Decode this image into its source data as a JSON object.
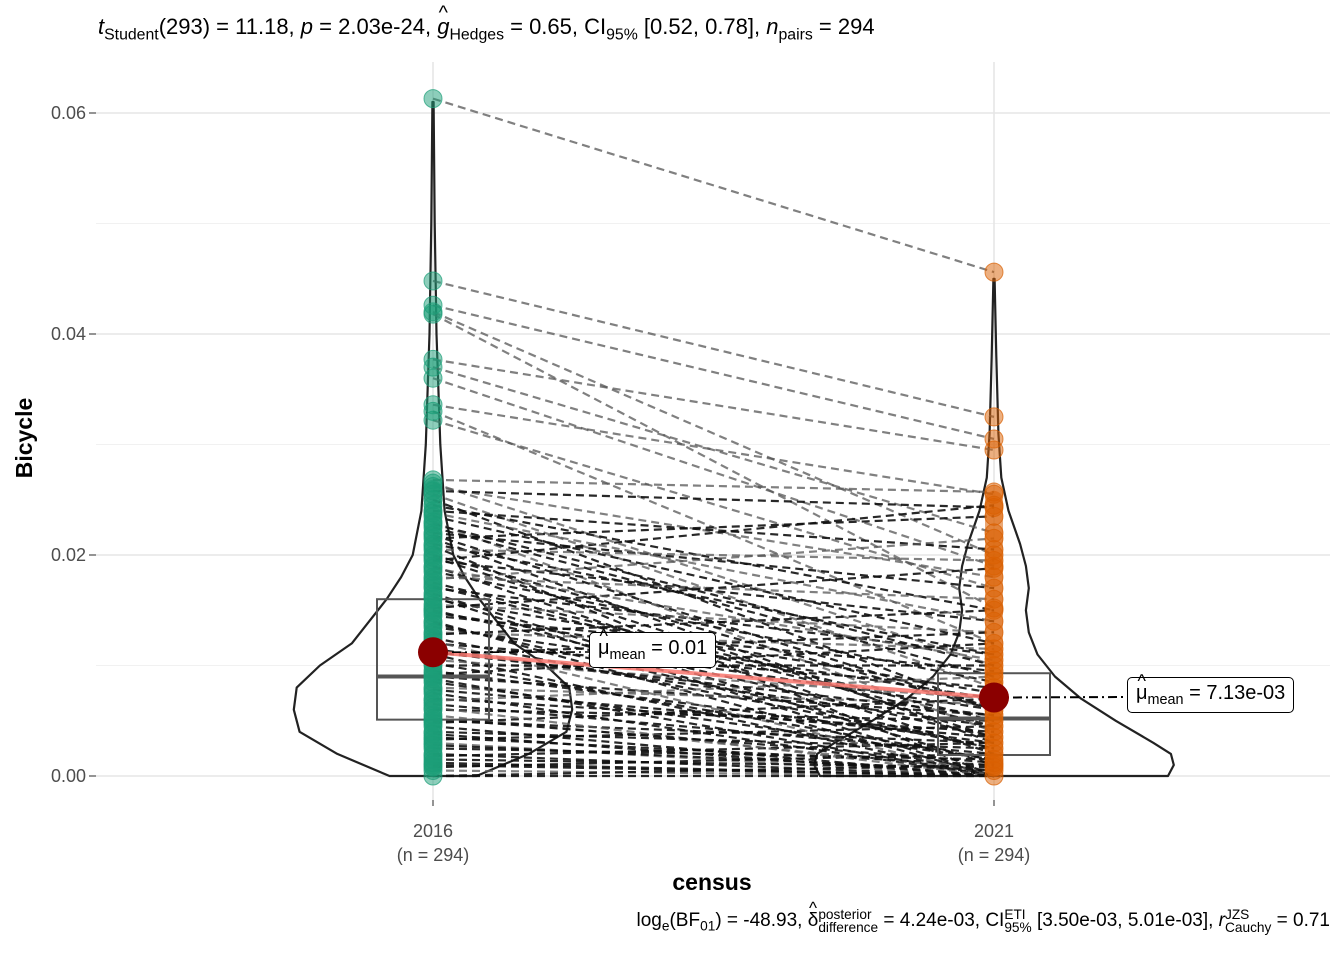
{
  "chart_data": {
    "type": "paired violin-box plot",
    "title": {
      "t_label": "t",
      "t_sub": "Student",
      "df": "(293)",
      "t_value": " = 11.18, ",
      "p_label": "p",
      "p_value": " = 2.03e-24, ",
      "g_label": "g",
      "g_sub": "Hedges",
      "g_value": " = 0.65, ",
      "ci_label": "CI",
      "ci_sub": "95%",
      "ci_value": " [0.52, 0.78], ",
      "n_label": "n",
      "n_sub": "pairs",
      "n_value": " = 294"
    },
    "subtitle": {
      "log_label": "log",
      "log_sub": "e",
      "bf_open": "(BF",
      "bf_sub": "01",
      "bf_value": ") = -48.93, ",
      "delta_label": "δ",
      "delta_sup": "posterior",
      "delta_sub": "difference",
      "delta_value": " = 4.24e-03, ",
      "ci_label": "CI",
      "ci_sup": "ETI",
      "ci_sub": "95%",
      "ci_value": " [3.50e-03, 5.01e-03], ",
      "r_label": "r",
      "r_sup": "JZS",
      "r_sub": "Cauchy",
      "r_value": " = 0.71"
    },
    "xlabel": "census",
    "ylabel": "Bicycle",
    "ylim": [
      -0.0015,
      0.0635
    ],
    "yticks": [
      0.0,
      0.02,
      0.04,
      0.06
    ],
    "ytick_labels": [
      "0.00",
      "0.02",
      "0.04",
      "0.06"
    ],
    "categories": [
      "2016",
      "2021"
    ],
    "category_n": [
      "(n = 294)",
      "(n = 294)"
    ],
    "colors": [
      "#1B9E77",
      "#D95F02"
    ],
    "mean_color": "#8B0000",
    "mean_line_color": "#F8766D",
    "means": [
      0.0112,
      0.0071
    ],
    "mean_labels": [
      {
        "mu": "μ",
        "sub": "mean",
        "value": " = 0.01"
      },
      {
        "mu": "μ",
        "sub": "mean",
        "value": " = 7.13e-03"
      }
    ],
    "boxes": [
      {
        "q1": 0.0051,
        "median": 0.009,
        "q3": 0.016
      },
      {
        "q1": 0.0019,
        "median": 0.0052,
        "q3": 0.0093
      }
    ],
    "violin_half_widths": [
      [
        [
          0.0,
          0.015
        ],
        [
          0.002,
          0.033
        ],
        [
          0.004,
          0.046
        ],
        [
          0.006,
          0.048
        ],
        [
          0.008,
          0.047
        ],
        [
          0.01,
          0.039
        ],
        [
          0.012,
          0.028
        ],
        [
          0.014,
          0.022
        ],
        [
          0.016,
          0.016
        ],
        [
          0.018,
          0.011
        ],
        [
          0.02,
          0.007
        ],
        [
          0.024,
          0.004
        ],
        [
          0.03,
          0.0025
        ],
        [
          0.04,
          0.0012
        ],
        [
          0.05,
          0.0006
        ],
        [
          0.061,
          0.0002
        ]
      ],
      [
        [
          0.0,
          0.06
        ],
        [
          0.001,
          0.062
        ],
        [
          0.002,
          0.061
        ],
        [
          0.003,
          0.055
        ],
        [
          0.005,
          0.042
        ],
        [
          0.007,
          0.03
        ],
        [
          0.009,
          0.021
        ],
        [
          0.011,
          0.015
        ],
        [
          0.013,
          0.012
        ],
        [
          0.015,
          0.011
        ],
        [
          0.017,
          0.012
        ],
        [
          0.019,
          0.011
        ],
        [
          0.021,
          0.009
        ],
        [
          0.024,
          0.005
        ],
        [
          0.027,
          0.0025
        ],
        [
          0.031,
          0.0015
        ],
        [
          0.038,
          0.0008
        ],
        [
          0.045,
          0.0002
        ]
      ]
    ],
    "pairs": [
      [
        0.0613,
        0.0456
      ],
      [
        0.0448,
        0.0325
      ],
      [
        0.0426,
        0.0305
      ],
      [
        0.042,
        0.02
      ],
      [
        0.0418,
        0.0152
      ],
      [
        0.0377,
        0.0295
      ],
      [
        0.037,
        0.022
      ],
      [
        0.036,
        0.019
      ],
      [
        0.0336,
        0.0255
      ],
      [
        0.033,
        0.012
      ],
      [
        0.0322,
        0.017
      ],
      [
        0.0268,
        0.0257
      ],
      [
        0.0265,
        0.01
      ],
      [
        0.0262,
        0.018
      ],
      [
        0.0258,
        0.0243
      ],
      [
        0.0255,
        0.008
      ],
      [
        0.025,
        0.006
      ],
      [
        0.0245,
        0.015
      ],
      [
        0.024,
        0.0205
      ],
      [
        0.0235,
        0.012
      ],
      [
        0.023,
        0.004
      ],
      [
        0.0225,
        0.009
      ],
      [
        0.022,
        0.017
      ],
      [
        0.0215,
        0.003
      ],
      [
        0.021,
        0.011
      ],
      [
        0.0205,
        0.0195
      ],
      [
        0.02,
        0.006
      ],
      [
        0.0195,
        0.014
      ],
      [
        0.019,
        0.002
      ],
      [
        0.0185,
        0.0085
      ],
      [
        0.018,
        0.016
      ],
      [
        0.0175,
        0.005
      ],
      [
        0.017,
        0.011
      ],
      [
        0.0165,
        0.001
      ],
      [
        0.016,
        0.0075
      ],
      [
        0.0155,
        0.013
      ],
      [
        0.015,
        0.0035
      ],
      [
        0.0145,
        0.0095
      ],
      [
        0.014,
        0.0
      ],
      [
        0.0135,
        0.006
      ],
      [
        0.013,
        0.0115
      ],
      [
        0.0125,
        0.0025
      ],
      [
        0.012,
        0.008
      ],
      [
        0.0115,
        0.0045
      ],
      [
        0.011,
        0.0
      ],
      [
        0.0105,
        0.007
      ],
      [
        0.01,
        0.01
      ],
      [
        0.0095,
        0.003
      ],
      [
        0.009,
        0.0055
      ],
      [
        0.0085,
        0.0015
      ],
      [
        0.008,
        0.0065
      ],
      [
        0.0075,
        0.0
      ],
      [
        0.007,
        0.004
      ],
      [
        0.0065,
        0.002
      ],
      [
        0.006,
        0.005
      ],
      [
        0.0055,
        0.0005
      ],
      [
        0.005,
        0.003
      ],
      [
        0.0045,
        0.0
      ],
      [
        0.004,
        0.0025
      ],
      [
        0.0035,
        0.001
      ],
      [
        0.003,
        0.0
      ],
      [
        0.0025,
        0.0015
      ],
      [
        0.002,
        0.0
      ],
      [
        0.0015,
        0.0008
      ],
      [
        0.001,
        0.0
      ],
      [
        0.0005,
        0.0
      ],
      [
        0.0,
        0.0
      ],
      [
        0.0,
        0.001
      ],
      [
        0.0215,
        0.0235
      ],
      [
        0.0195,
        0.0245
      ],
      [
        0.0178,
        0.0215
      ],
      [
        0.0152,
        0.0188
      ],
      [
        0.0128,
        0.015
      ],
      [
        0.011,
        0.013
      ],
      [
        0.0092,
        0.012
      ],
      [
        0.0068,
        0.009
      ],
      [
        0.0048,
        0.007
      ],
      [
        0.0033,
        0.0045
      ],
      [
        0.0018,
        0.003
      ],
      [
        0.0008,
        0.002
      ],
      [
        0.0238,
        0.014
      ],
      [
        0.0228,
        0.01
      ],
      [
        0.0218,
        0.006
      ],
      [
        0.0208,
        0.0
      ],
      [
        0.0198,
        0.0035
      ],
      [
        0.0188,
        0.0105
      ],
      [
        0.0172,
        0.0045
      ],
      [
        0.0162,
        0.0
      ],
      [
        0.0148,
        0.007
      ],
      [
        0.0138,
        0.0025
      ],
      [
        0.0122,
        0.0
      ],
      [
        0.0112,
        0.0055
      ],
      [
        0.0102,
        0.0015
      ],
      [
        0.0088,
        0.0
      ],
      [
        0.0078,
        0.0035
      ],
      [
        0.0062,
        0.0
      ],
      [
        0.0052,
        0.0012
      ],
      [
        0.0038,
        0.0
      ],
      [
        0.0028,
        0.0005
      ],
      [
        0.0012,
        0.0
      ]
    ]
  }
}
